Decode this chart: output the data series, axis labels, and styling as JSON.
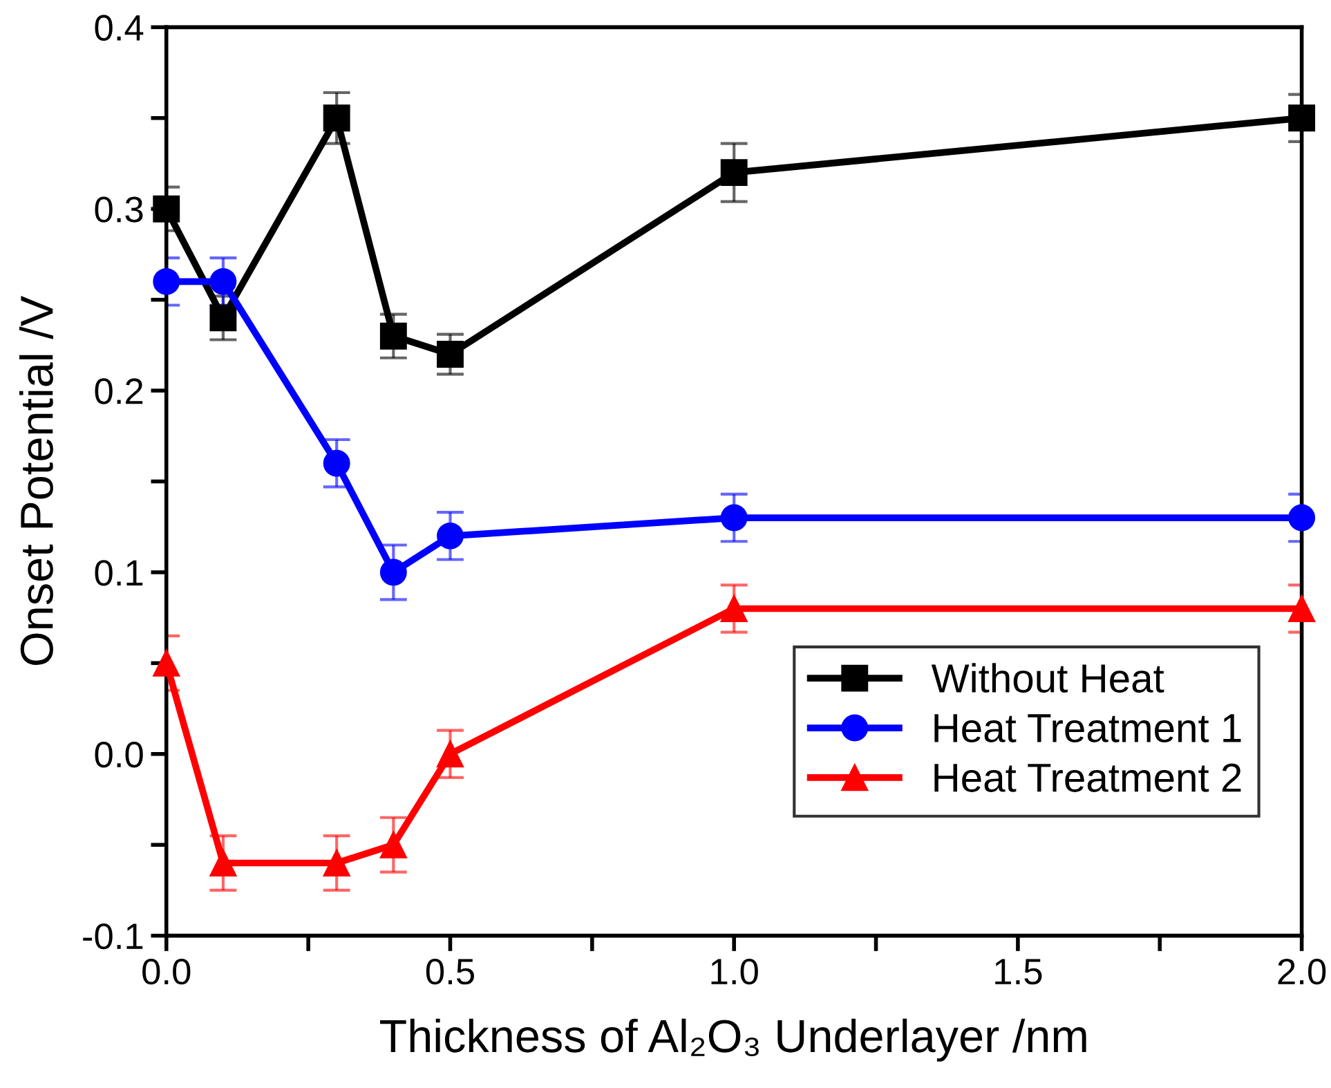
{
  "chart_data": {
    "type": "line",
    "xlabel": "Thickness of Al₂O₃ Underlayer /nm",
    "ylabel": "Onset Potential /V",
    "x": [
      0,
      0.1,
      0.3,
      0.4,
      0.5,
      1.0,
      2.0
    ],
    "series": [
      {
        "name": "Without Heat",
        "color": "#000000",
        "marker": "square",
        "values": [
          0.3,
          0.24,
          0.35,
          0.23,
          0.22,
          0.32,
          0.35
        ],
        "errors": [
          0.012,
          0.012,
          0.014,
          0.012,
          0.011,
          0.016,
          0.013
        ]
      },
      {
        "name": "Heat Treatment 1",
        "color": "#0000ff",
        "marker": "circle",
        "values": [
          0.26,
          0.26,
          0.16,
          0.1,
          0.12,
          0.13,
          0.13
        ],
        "errors": [
          0.013,
          0.013,
          0.013,
          0.015,
          0.013,
          0.013,
          0.013
        ]
      },
      {
        "name": "Heat Treatment 2",
        "color": "#ff0000",
        "marker": "triangle",
        "values": [
          0.05,
          -0.06,
          -0.06,
          -0.05,
          0.0,
          0.08,
          0.08
        ],
        "errors": [
          0.015,
          0.015,
          0.015,
          0.015,
          0.013,
          0.013,
          0.013
        ]
      }
    ],
    "xlim": [
      0,
      2.0
    ],
    "xticks": [
      {
        "value": 0,
        "label": "0.0"
      },
      {
        "value": 0.25,
        "label": null
      },
      {
        "value": 0.5,
        "label": "0.5"
      },
      {
        "value": 0.75,
        "label": null
      },
      {
        "value": 1.0,
        "label": "1.0"
      },
      {
        "value": 1.25,
        "label": null
      },
      {
        "value": 1.5,
        "label": "1.5"
      },
      {
        "value": 1.75,
        "label": null
      },
      {
        "value": 2.0,
        "label": "2.0"
      }
    ],
    "ylim": [
      -0.1,
      0.4
    ],
    "yticks": [
      {
        "value": -0.1,
        "label": "-0.1"
      },
      {
        "value": -0.05,
        "label": null
      },
      {
        "value": 0,
        "label": "0.0"
      },
      {
        "value": 0.05,
        "label": null
      },
      {
        "value": 0.1,
        "label": "0.1"
      },
      {
        "value": 0.15,
        "label": null
      },
      {
        "value": 0.2,
        "label": "0.2"
      },
      {
        "value": 0.25,
        "label": null
      },
      {
        "value": 0.3,
        "label": "0.3"
      },
      {
        "value": 0.35,
        "label": null
      },
      {
        "value": 0.4,
        "label": "0.4"
      }
    ],
    "grid": false,
    "legend": "bottom right",
    "line_style": "solid"
  }
}
